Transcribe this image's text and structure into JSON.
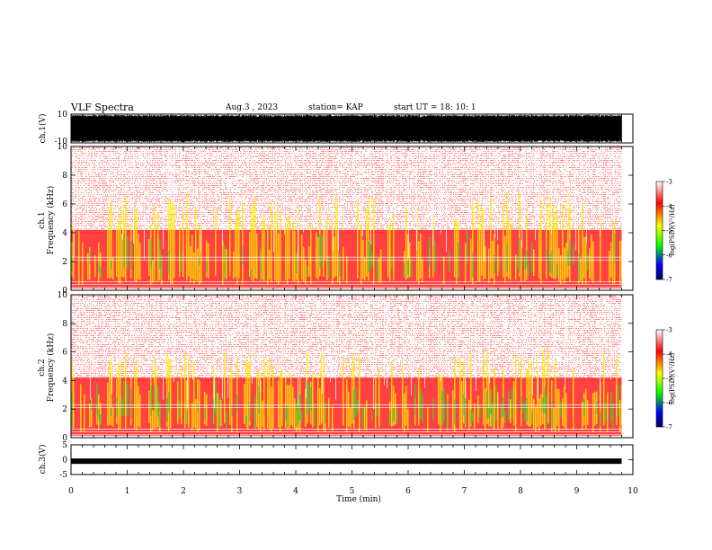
{
  "header": {
    "title": "VLF Spectra",
    "date": "Aug.3 , 2023",
    "station": "station= KAP",
    "start": "start UT = 18: 10: 1"
  },
  "chart_data": [
    {
      "type": "line",
      "panel": "ch1-waveform",
      "ylabel": "ch.1(V)",
      "ylim": [
        -10,
        10
      ],
      "y_tick_labels": [
        "10",
        "-10"
      ],
      "xlim": [
        0,
        10
      ],
      "x_end_of_data": 9.8,
      "description_values": {
        "amplitude_range": [
          -10,
          10
        ]
      }
    },
    {
      "type": "heatmap",
      "panel": "ch1-spectrogram",
      "ylabel": "ch.1 Frequency (kHz)",
      "ylim": [
        0,
        10
      ],
      "y_ticks": [
        0,
        2,
        4,
        6,
        8,
        10
      ],
      "xlim": [
        0,
        10
      ],
      "x_end_of_data": 9.8,
      "colorbar": {
        "label": "log(PSD)(V^2/Hz)",
        "range": [
          -7,
          -3
        ],
        "ticks": [
          "-3",
          "-4",
          "-5",
          "-6",
          "-7"
        ],
        "colors": [
          "#ffffff",
          "#ff0000",
          "#ffff00",
          "#00ff00",
          "#0000ff",
          "#000080"
        ]
      }
    },
    {
      "type": "heatmap",
      "panel": "ch2-spectrogram",
      "ylabel": "ch.2 Frequency (kHz)",
      "ylim": [
        0,
        10
      ],
      "y_ticks": [
        0,
        2,
        4,
        6,
        8,
        10
      ],
      "xlim": [
        0,
        10
      ],
      "x_end_of_data": 9.8,
      "colorbar": {
        "label": "log(PSD)(V^2/Hz)",
        "range": [
          -7,
          -3
        ],
        "ticks": [
          "-3",
          "-4",
          "-5",
          "-6",
          "-7"
        ],
        "colors": [
          "#ffffff",
          "#ff0000",
          "#ffff00",
          "#00ff00",
          "#0000ff",
          "#000080"
        ]
      }
    },
    {
      "type": "line",
      "panel": "ch3-waveform",
      "ylabel": "ch.3(V)",
      "ylim": [
        -5,
        5
      ],
      "y_tick_labels": [
        "5",
        "0",
        "-5"
      ],
      "xlim": [
        0,
        10
      ],
      "x_end_of_data": 9.8,
      "mean_value": -0.5,
      "xlabel": "Time (min)",
      "x_ticks": [
        0,
        1,
        2,
        3,
        4,
        5,
        6,
        7,
        8,
        9,
        10
      ]
    }
  ],
  "labels": {
    "ch1_axis_top": "ch.1",
    "ch1_axis_bottom": "Frequency (kHz)",
    "ch2_axis_top": "ch.2",
    "ch2_axis_bottom": "Frequency (kHz)",
    "ch1_wave": "ch.1(V)",
    "ch3_wave": "ch.3(V)",
    "xlabel": "Time (min)",
    "cbar_label": "log(PSD)(V²/Hz)"
  }
}
